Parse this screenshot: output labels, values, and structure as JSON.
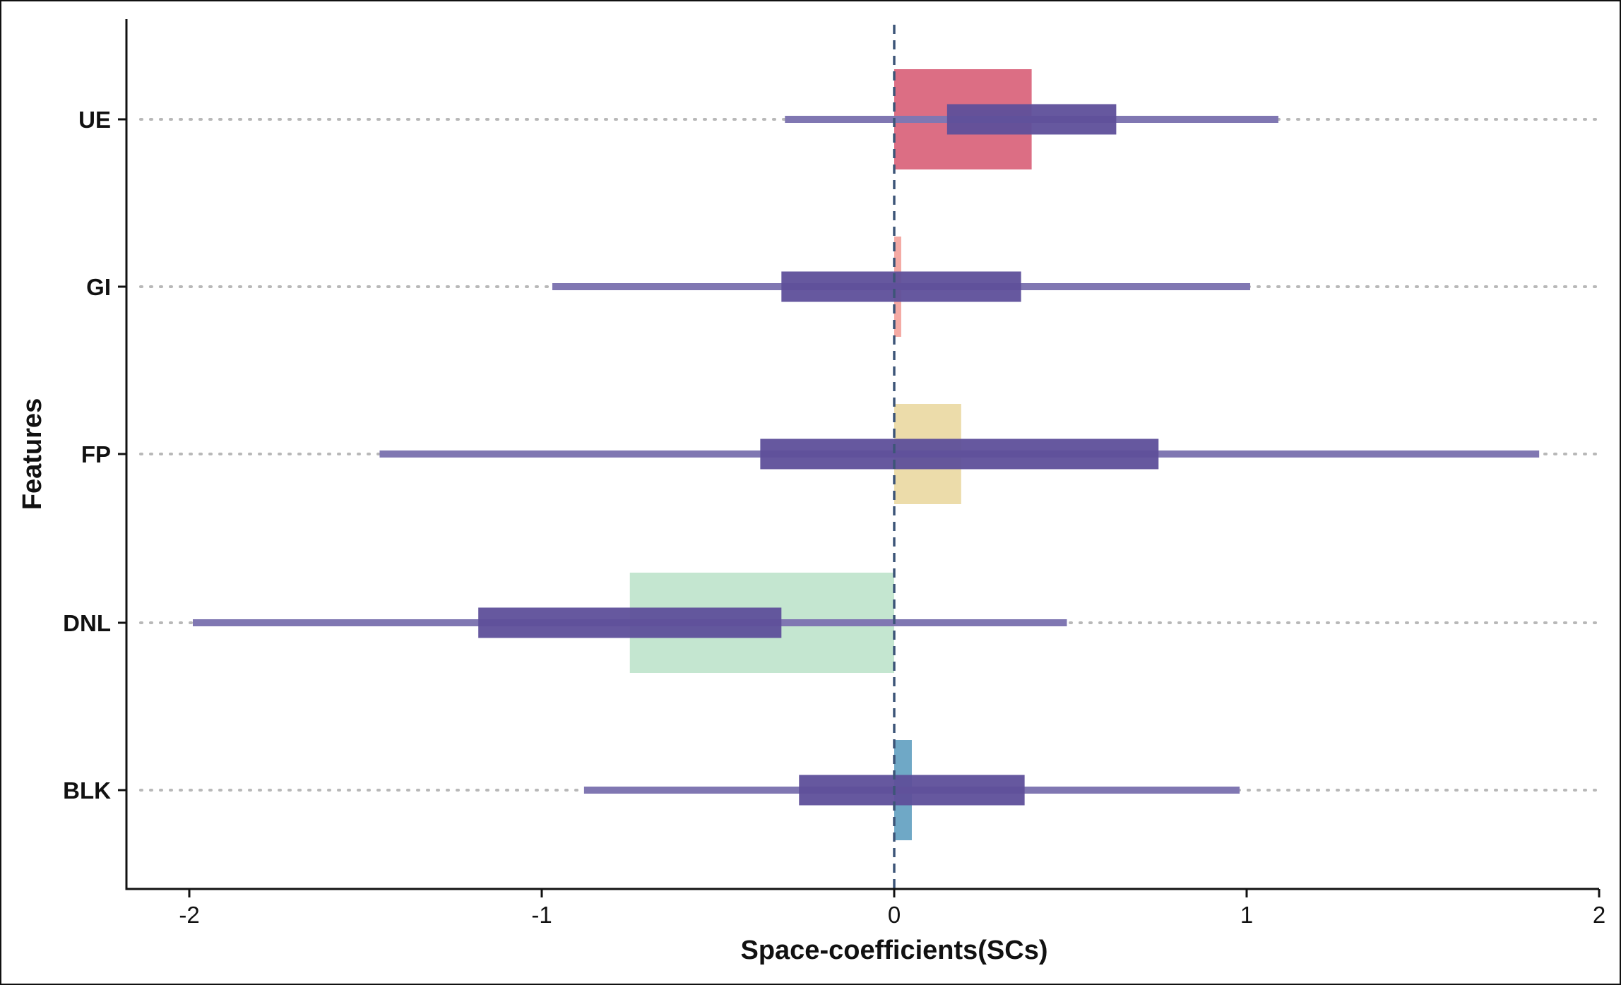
{
  "chart_data": {
    "type": "bar",
    "title": "",
    "xlabel": "Space-coefficients(SCs)",
    "ylabel": "Features",
    "xlim": [
      -2.2,
      2.0
    ],
    "x_ticks": [
      "-2",
      "-1",
      "0",
      "1",
      "2"
    ],
    "x_tick_values": [
      -2,
      -1,
      0,
      1,
      2
    ],
    "grid": false,
    "reference_line": 0,
    "categories": [
      "UE",
      "GI",
      "FP",
      "DNL",
      "BLK"
    ],
    "series": [
      {
        "values": [
          0.39,
          0.02,
          0.19,
          -0.75,
          0.05
        ],
        "colors": [
          "#dc6e84",
          "#f4aaa4",
          "#ecdcaa",
          "#c4e6d0",
          "#6fa8c6"
        ]
      },
      {
        "interval_outer": [
          [
            -0.31,
            1.09
          ],
          [
            -0.97,
            1.01
          ],
          [
            -1.46,
            1.83
          ],
          [
            -1.99,
            0.49
          ],
          [
            -0.88,
            0.98
          ]
        ],
        "interval_inner": [
          [
            0.15,
            0.63
          ],
          [
            -0.32,
            0.36
          ],
          [
            -0.38,
            0.75
          ],
          [
            -1.18,
            -0.32
          ],
          [
            -0.27,
            0.37
          ]
        ],
        "color": "#5e4f9a"
      }
    ]
  }
}
